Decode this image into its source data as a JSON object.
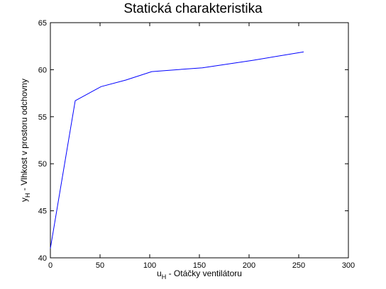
{
  "chart_data": {
    "type": "line",
    "title": "Statická charakteristika",
    "xlabel": {
      "main": "u",
      "sub": "H",
      "rest": " - Otáčky ventilátoru"
    },
    "ylabel": {
      "main": "y",
      "sub": "H",
      "rest": " - Vlhkost v prostoru odchovny"
    },
    "xlim": [
      0,
      300
    ],
    "ylim": [
      40,
      65
    ],
    "xticks": [
      0,
      50,
      100,
      150,
      200,
      250,
      300
    ],
    "yticks": [
      40,
      45,
      50,
      55,
      60,
      65
    ],
    "grid": false,
    "series": [
      {
        "color": "#0000ff",
        "x": [
          0,
          25,
          51,
          76,
          102,
          153,
          204,
          255
        ],
        "y": [
          41.0,
          56.7,
          58.2,
          58.9,
          59.8,
          60.2,
          61.0,
          61.9
        ]
      }
    ]
  }
}
